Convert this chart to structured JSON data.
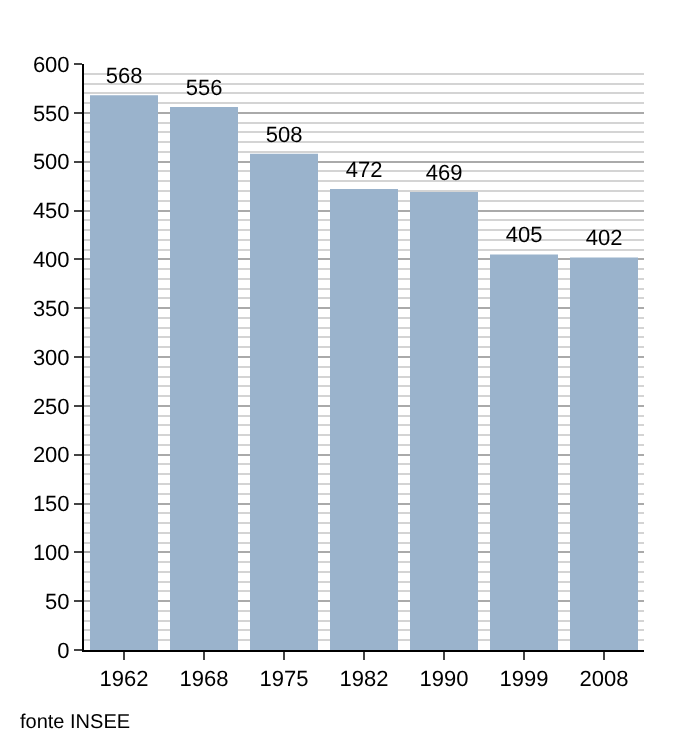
{
  "chart_data": {
    "type": "bar",
    "categories": [
      "1962",
      "1968",
      "1975",
      "1982",
      "1990",
      "1999",
      "2008"
    ],
    "values": [
      568,
      556,
      508,
      472,
      469,
      405,
      402
    ],
    "color": "#9ab3cc",
    "ylim": [
      0,
      600
    ],
    "yticks": [
      0,
      50,
      100,
      150,
      200,
      250,
      300,
      350,
      400,
      450,
      500,
      550,
      600
    ],
    "grid": "y",
    "data_labels": true,
    "annotations": [
      "fonte INSEE"
    ]
  }
}
